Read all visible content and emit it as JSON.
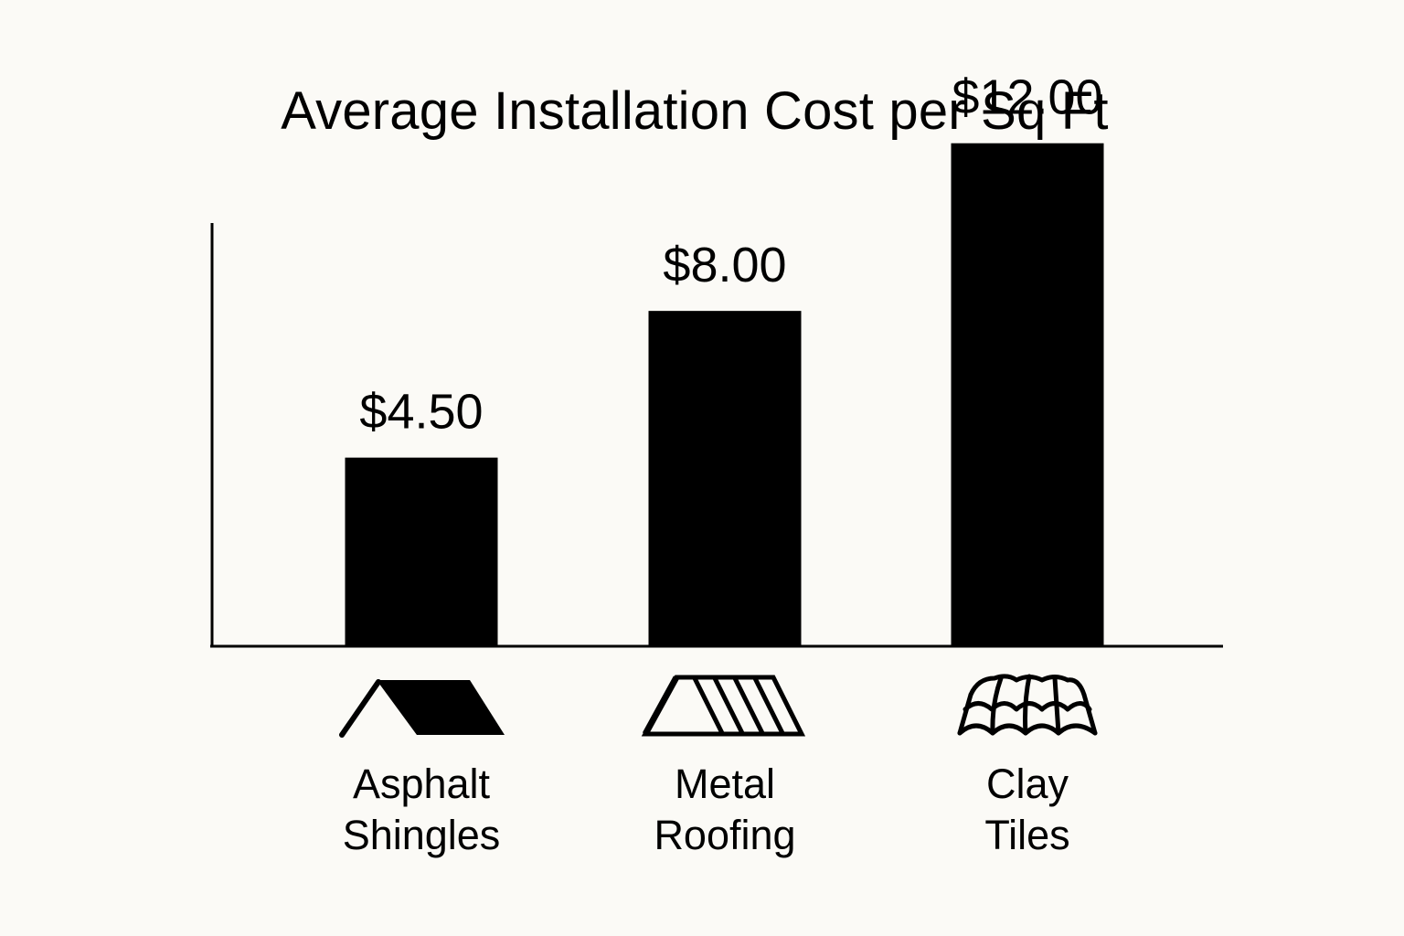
{
  "chart_data": {
    "type": "bar",
    "title": "Average Installation Cost per Sq Ft",
    "xlabel": "",
    "ylabel": "",
    "categories": [
      {
        "label_lines": [
          "Asphalt",
          "Shingles"
        ],
        "icon": "asphalt-shingle-roof-icon"
      },
      {
        "label_lines": [
          "Metal",
          "Roofing"
        ],
        "icon": "metal-roof-icon"
      },
      {
        "label_lines": [
          "Clay",
          "Tiles"
        ],
        "icon": "clay-tile-roof-icon"
      }
    ],
    "values": [
      4.5,
      8.0,
      12.0
    ],
    "value_labels": [
      "$4.50",
      "$8.00",
      "$12.00"
    ],
    "ylim": [
      0,
      14
    ],
    "grid": false,
    "bar_color": "#000000",
    "background_color": "#fbfaf6"
  }
}
